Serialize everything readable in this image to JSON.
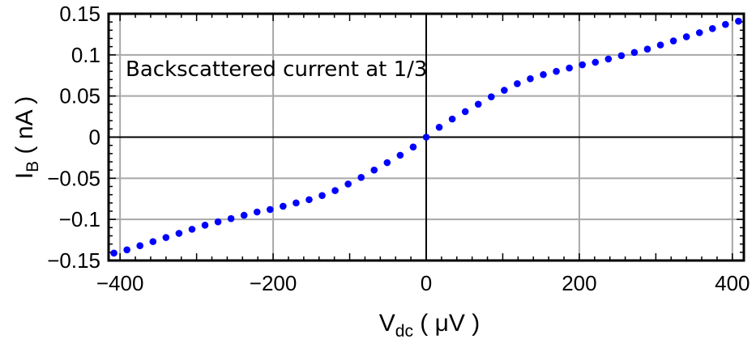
{
  "chart_data": {
    "type": "scatter",
    "xlabel_main": "V",
    "xlabel_sub": "dc",
    "xlabel_rest": " ( μV )",
    "ylabel_main": "I",
    "ylabel_sub": "B",
    "ylabel_rest": " ( nA )",
    "annotation": "Backscattered current at 1/3",
    "xlim": [
      -415,
      415
    ],
    "ylim": [
      -0.15,
      0.15
    ],
    "x_ticks": [
      -400,
      -200,
      0,
      200,
      400
    ],
    "x_tick_labels": [
      "−400",
      "−200",
      "0",
      "200",
      "400"
    ],
    "y_ticks": [
      0.15,
      0.1,
      0.05,
      0,
      -0.05,
      -0.1,
      -0.15
    ],
    "y_tick_labels": [
      "0.15",
      "0.1",
      "0.05",
      "0",
      "−0.05",
      "−0.1",
      "−0.15"
    ],
    "grid": true,
    "marker_color": "#0000ff",
    "series": [
      {
        "x": [
          -408,
          -391,
          -374,
          -357,
          -340,
          -323,
          -306,
          -289,
          -272,
          -255,
          -238,
          -221,
          -204,
          -187,
          -170,
          -153,
          -136,
          -119,
          -102,
          -85,
          -68,
          -51,
          -34,
          -17,
          0,
          17,
          34,
          51,
          68,
          85,
          102,
          119,
          136,
          153,
          170,
          187,
          204,
          221,
          238,
          255,
          272,
          289,
          306,
          323,
          340,
          357,
          374,
          391,
          408
        ],
        "y": [
          -0.141,
          -0.137,
          -0.132,
          -0.127,
          -0.122,
          -0.117,
          -0.112,
          -0.107,
          -0.103,
          -0.099,
          -0.095,
          -0.091,
          -0.088,
          -0.084,
          -0.08,
          -0.076,
          -0.071,
          -0.065,
          -0.057,
          -0.049,
          -0.04,
          -0.031,
          -0.022,
          -0.012,
          0.0,
          0.012,
          0.022,
          0.031,
          0.04,
          0.049,
          0.057,
          0.065,
          0.071,
          0.076,
          0.08,
          0.084,
          0.088,
          0.091,
          0.095,
          0.099,
          0.103,
          0.107,
          0.112,
          0.117,
          0.122,
          0.127,
          0.132,
          0.137,
          0.141
        ]
      }
    ]
  }
}
